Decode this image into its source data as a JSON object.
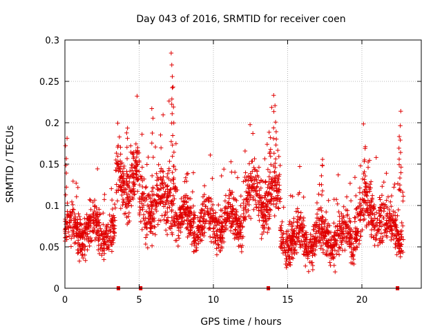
{
  "chart_data": {
    "type": "scatter",
    "title": "Day 043 of 2016, SRMTID for receiver coen",
    "xlabel": "GPS time / hours",
    "ylabel": "SRMTID / TECUs",
    "xlim": [
      0,
      24
    ],
    "ylim": [
      0,
      0.3
    ],
    "x_ticks": [
      0,
      5,
      10,
      15,
      20
    ],
    "x_tick_labels": [
      "0",
      "5",
      "10",
      "15",
      "20"
    ],
    "y_ticks": [
      0,
      0.05,
      0.1,
      0.15,
      0.2,
      0.25,
      0.3
    ],
    "y_tick_labels": [
      "0",
      "0.05",
      "0.1",
      "0.15",
      "0.2",
      "0.25",
      "0.3"
    ],
    "grid": true,
    "marker": "+",
    "color": "#e00000",
    "segments": [
      {
        "start": 0.0,
        "end": 3.4,
        "base": 0.07,
        "spread": 0.03
      },
      {
        "start": 3.4,
        "end": 5.0,
        "base": 0.13,
        "spread": 0.04
      },
      {
        "start": 5.0,
        "end": 7.0,
        "base": 0.1,
        "spread": 0.04
      },
      {
        "start": 7.0,
        "end": 7.5,
        "base": 0.13,
        "spread": 0.07
      },
      {
        "start": 7.5,
        "end": 12.0,
        "base": 0.08,
        "spread": 0.03
      },
      {
        "start": 12.0,
        "end": 14.5,
        "base": 0.11,
        "spread": 0.04
      },
      {
        "start": 14.5,
        "end": 19.5,
        "base": 0.06,
        "spread": 0.03
      },
      {
        "start": 19.5,
        "end": 21.5,
        "base": 0.09,
        "spread": 0.04
      },
      {
        "start": 21.5,
        "end": 22.8,
        "base": 0.07,
        "spread": 0.03
      }
    ],
    "peaks": [
      {
        "x": 0.1,
        "y": 0.185
      },
      {
        "x": 4.2,
        "y": 0.195
      },
      {
        "x": 4.6,
        "y": 0.17
      },
      {
        "x": 5.9,
        "y": 0.225
      },
      {
        "x": 7.2,
        "y": 0.29
      },
      {
        "x": 7.25,
        "y": 0.27
      },
      {
        "x": 7.3,
        "y": 0.245
      },
      {
        "x": 13.8,
        "y": 0.198
      },
      {
        "x": 14.1,
        "y": 0.24
      },
      {
        "x": 14.2,
        "y": 0.225
      },
      {
        "x": 17.3,
        "y": 0.165
      },
      {
        "x": 20.2,
        "y": 0.172
      },
      {
        "x": 22.6,
        "y": 0.215
      },
      {
        "x": 22.5,
        "y": 0.185
      }
    ],
    "gap_markers": [
      3.6,
      5.1,
      13.7,
      22.4
    ]
  }
}
